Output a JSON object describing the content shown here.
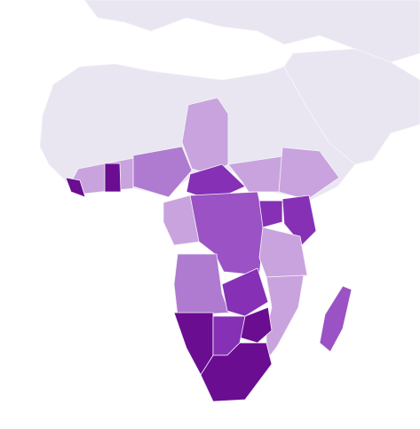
{
  "map": {
    "ocean_color": "#ffffff",
    "land_color": "#e9e6f1",
    "border_color": "#f6f4fa",
    "shade_colors": [
      "#c9a3dd",
      "#ae7bd0",
      "#9a52c4",
      "#8530b5",
      "#6a0d91"
    ]
  }
}
